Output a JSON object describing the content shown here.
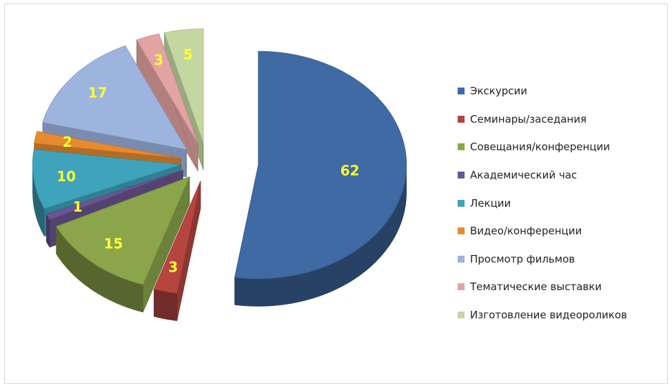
{
  "chart_data": {
    "type": "pie",
    "title": "",
    "series": [
      {
        "label": "Экскурсии",
        "value": 62,
        "color": "#3f6aa3"
      },
      {
        "label": "Семинары/заседания",
        "value": 3,
        "color": "#b64540"
      },
      {
        "label": "Совещания/конференции",
        "value": 15,
        "color": "#8aa54a"
      },
      {
        "label": "Академический час",
        "value": 1,
        "color": "#6c5591"
      },
      {
        "label": "Лекции",
        "value": 10,
        "color": "#3ea3bb"
      },
      {
        "label": "Видео/конференции",
        "value": 2,
        "color": "#e58a30"
      },
      {
        "label": "Просмотр фильмов",
        "value": 17,
        "color": "#9cb4de"
      },
      {
        "label": "Тематические выставки",
        "value": 3,
        "color": "#e4a3a3"
      },
      {
        "label": "Изготовление видеороликов",
        "value": 5,
        "color": "#c4d7a0"
      }
    ],
    "data_label_color": "#ffff33",
    "legend_position": "right",
    "style": "exploded 3D pie"
  }
}
